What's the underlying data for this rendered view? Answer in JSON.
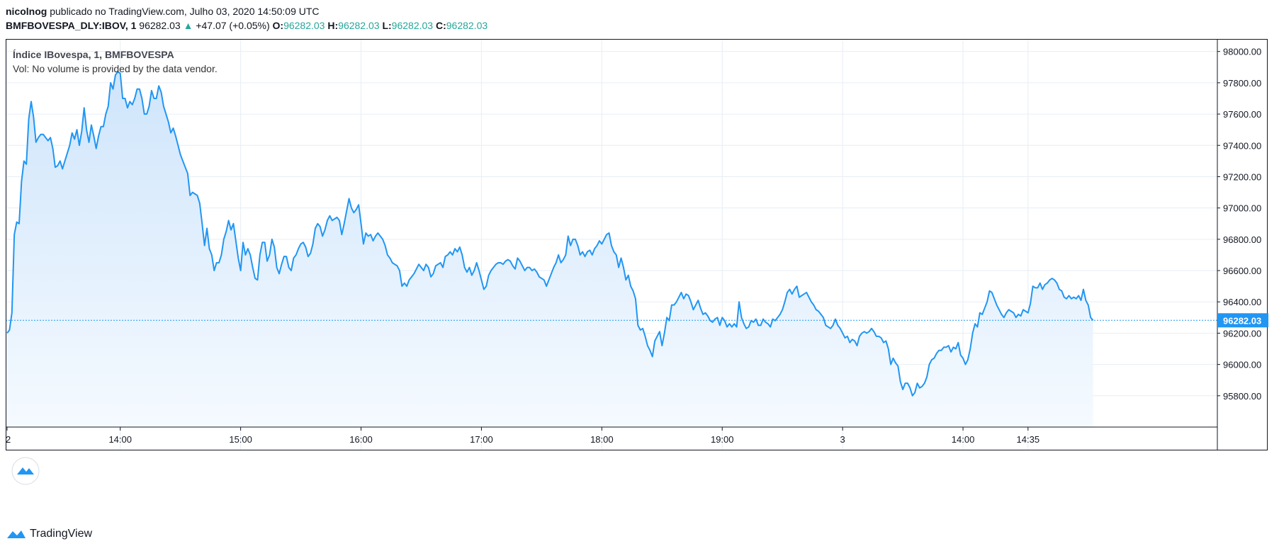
{
  "header": {
    "author": "nicolnog",
    "published_text": "publicado no TradingView.com, Julho 03, 2020 14:50:09 UTC",
    "symbol": "BMFBOVESPA_DLY:IBOV, 1",
    "last_price": "96282.03",
    "change_arrow": "▲",
    "change": "+47.07 (+0.05%)",
    "o_label": "O:",
    "o_value": "96282.03",
    "h_label": "H:",
    "h_value": "96282.03",
    "l_label": "L:",
    "l_value": "96282.03",
    "c_label": "C:",
    "c_value": "96282.03"
  },
  "legend": {
    "title": "Índice IBovespa, 1, BMFBOVESPA",
    "volume_note": "Vol: No volume is provided by the data vendor."
  },
  "footer": {
    "brand": "TradingView"
  },
  "colors": {
    "line": "#2196f3",
    "fill_top": "#cfe5fb",
    "fill_bottom": "#f5faff",
    "grid": "#e6eef5",
    "axis": "#131722",
    "price_tag": "#2196f3"
  },
  "chart_data": {
    "type": "area",
    "title": "Índice IBovespa, 1, BMFBOVESPA",
    "ylim": [
      95600,
      98080
    ],
    "y_ticks": [
      95800,
      96000,
      96200,
      96400,
      96600,
      96800,
      97000,
      97200,
      97400,
      97600,
      97800,
      98000
    ],
    "y_tick_labels": [
      "95800.00",
      "96000.00",
      "96200.00",
      "96400.00",
      "96600.00",
      "96800.00",
      "97000.00",
      "97200.00",
      "97400.00",
      "97600.00",
      "97800.00",
      "98000.00"
    ],
    "x_range": [
      0,
      427
    ],
    "x_ticks": [
      0,
      47,
      97,
      147,
      197,
      247,
      297,
      347,
      397,
      424
    ],
    "x_tick_labels": [
      "2",
      "14:00",
      "15:00",
      "16:00",
      "17:00",
      "18:00",
      "19:00",
      "3",
      "14:00",
      "14:35"
    ],
    "last_value": 96282.03,
    "last_value_label": "96282.03",
    "grid": true,
    "values": [
      96200,
      96220,
      96330,
      96830,
      96910,
      96900,
      97170,
      97300,
      97280,
      97570,
      97680,
      97580,
      97420,
      97450,
      97470,
      97470,
      97450,
      97430,
      97450,
      97380,
      97260,
      97270,
      97300,
      97250,
      97300,
      97350,
      97400,
      97480,
      97440,
      97500,
      97400,
      97490,
      97640,
      97500,
      97420,
      97530,
      97460,
      97380,
      97460,
      97520,
      97520,
      97600,
      97650,
      97800,
      97760,
      97850,
      97870,
      97860,
      97700,
      97700,
      97640,
      97680,
      97660,
      97700,
      97760,
      97760,
      97700,
      97600,
      97600,
      97650,
      97750,
      97700,
      97700,
      97780,
      97740,
      97650,
      97600,
      97550,
      97480,
      97510,
      97460,
      97400,
      97340,
      97300,
      97260,
      97220,
      97080,
      97100,
      97090,
      97080,
      97030,
      96900,
      96760,
      96870,
      96740,
      96700,
      96600,
      96650,
      96650,
      96700,
      96800,
      96850,
      96920,
      96860,
      96900,
      96790,
      96680,
      96600,
      96780,
      96700,
      96740,
      96700,
      96620,
      96550,
      96540,
      96700,
      96780,
      96780,
      96660,
      96700,
      96800,
      96750,
      96620,
      96580,
      96640,
      96690,
      96690,
      96620,
      96600,
      96680,
      96700,
      96740,
      96770,
      96780,
      96750,
      96690,
      96710,
      96770,
      96870,
      96900,
      96880,
      96820,
      96860,
      96920,
      96950,
      96920,
      96930,
      96940,
      96920,
      96830,
      96900,
      96980,
      97060,
      97000,
      96970,
      96990,
      97020,
      96900,
      96770,
      96840,
      96820,
      96830,
      96790,
      96820,
      96840,
      96820,
      96800,
      96760,
      96700,
      96680,
      96650,
      96640,
      96630,
      96600,
      96500,
      96520,
      96500,
      96540,
      96560,
      96580,
      96610,
      96640,
      96620,
      96600,
      96640,
      96620,
      96560,
      96580,
      96630,
      96640,
      96650,
      96620,
      96690,
      96700,
      96720,
      96700,
      96740,
      96720,
      96750,
      96700,
      96620,
      96590,
      96620,
      96570,
      96600,
      96650,
      96600,
      96540,
      96480,
      96500,
      96570,
      96600,
      96620,
      96640,
      96650,
      96650,
      96640,
      96660,
      96670,
      96660,
      96630,
      96610,
      96680,
      96660,
      96630,
      96600,
      96620,
      96620,
      96600,
      96610,
      96590,
      96560,
      96550,
      96540,
      96500,
      96540,
      96580,
      96620,
      96650,
      96700,
      96650,
      96670,
      96700,
      96820,
      96760,
      96800,
      96800,
      96760,
      96700,
      96720,
      96690,
      96720,
      96730,
      96700,
      96740,
      96760,
      96790,
      96770,
      96800,
      96830,
      96840,
      96760,
      96720,
      96700,
      96620,
      96680,
      96620,
      96540,
      96570,
      96500,
      96470,
      96420,
      96250,
      96220,
      96230,
      96180,
      96120,
      96090,
      96050,
      96150,
      96180,
      96210,
      96120,
      96200,
      96300,
      96280,
      96380,
      96380,
      96400,
      96430,
      96460,
      96420,
      96450,
      96440,
      96400,
      96350,
      96380,
      96410,
      96360,
      96320,
      96330,
      96310,
      96280,
      96270,
      96290,
      96300,
      96250,
      96300,
      96280,
      96240,
      96260,
      96240,
      96260,
      96240,
      96400,
      96300,
      96260,
      96230,
      96240,
      96280,
      96270,
      96290,
      96250,
      96250,
      96290,
      96270,
      96260,
      96240,
      96290,
      96280,
      96300,
      96320,
      96350,
      96400,
      96460,
      96480,
      96450,
      96480,
      96500,
      96430,
      96440,
      96450,
      96460,
      96430,
      96400,
      96380,
      96350,
      96340,
      96320,
      96300,
      96250,
      96240,
      96230,
      96250,
      96290,
      96250,
      96230,
      96200,
      96170,
      96180,
      96140,
      96160,
      96150,
      96120,
      96180,
      96200,
      96210,
      96200,
      96210,
      96230,
      96210,
      96180,
      96180,
      96170,
      96140,
      96150,
      96100,
      96000,
      96040,
      96010,
      95990,
      95890,
      95840,
      95880,
      95880,
      95850,
      95800,
      95820,
      95880,
      95850,
      95860,
      95880,
      95920,
      96000,
      96030,
      96040,
      96070,
      96090,
      96090,
      96110,
      96110,
      96120,
      96080,
      96110,
      96100,
      96140,
      96060,
      96040,
      96000,
      96030,
      96100,
      96200,
      96260,
      96240,
      96330,
      96320,
      96360,
      96400,
      96470,
      96460,
      96420,
      96380,
      96350,
      96320,
      96300,
      96330,
      96350,
      96340,
      96330,
      96300,
      96320,
      96310,
      96350,
      96340,
      96330,
      96390,
      96500,
      96490,
      96490,
      96520,
      96480,
      96510,
      96520,
      96540,
      96550,
      96540,
      96520,
      96480,
      96470,
      96430,
      96420,
      96440,
      96420,
      96430,
      96420,
      96440,
      96410,
      96480,
      96410,
      96380,
      96300,
      96282.03
    ]
  }
}
